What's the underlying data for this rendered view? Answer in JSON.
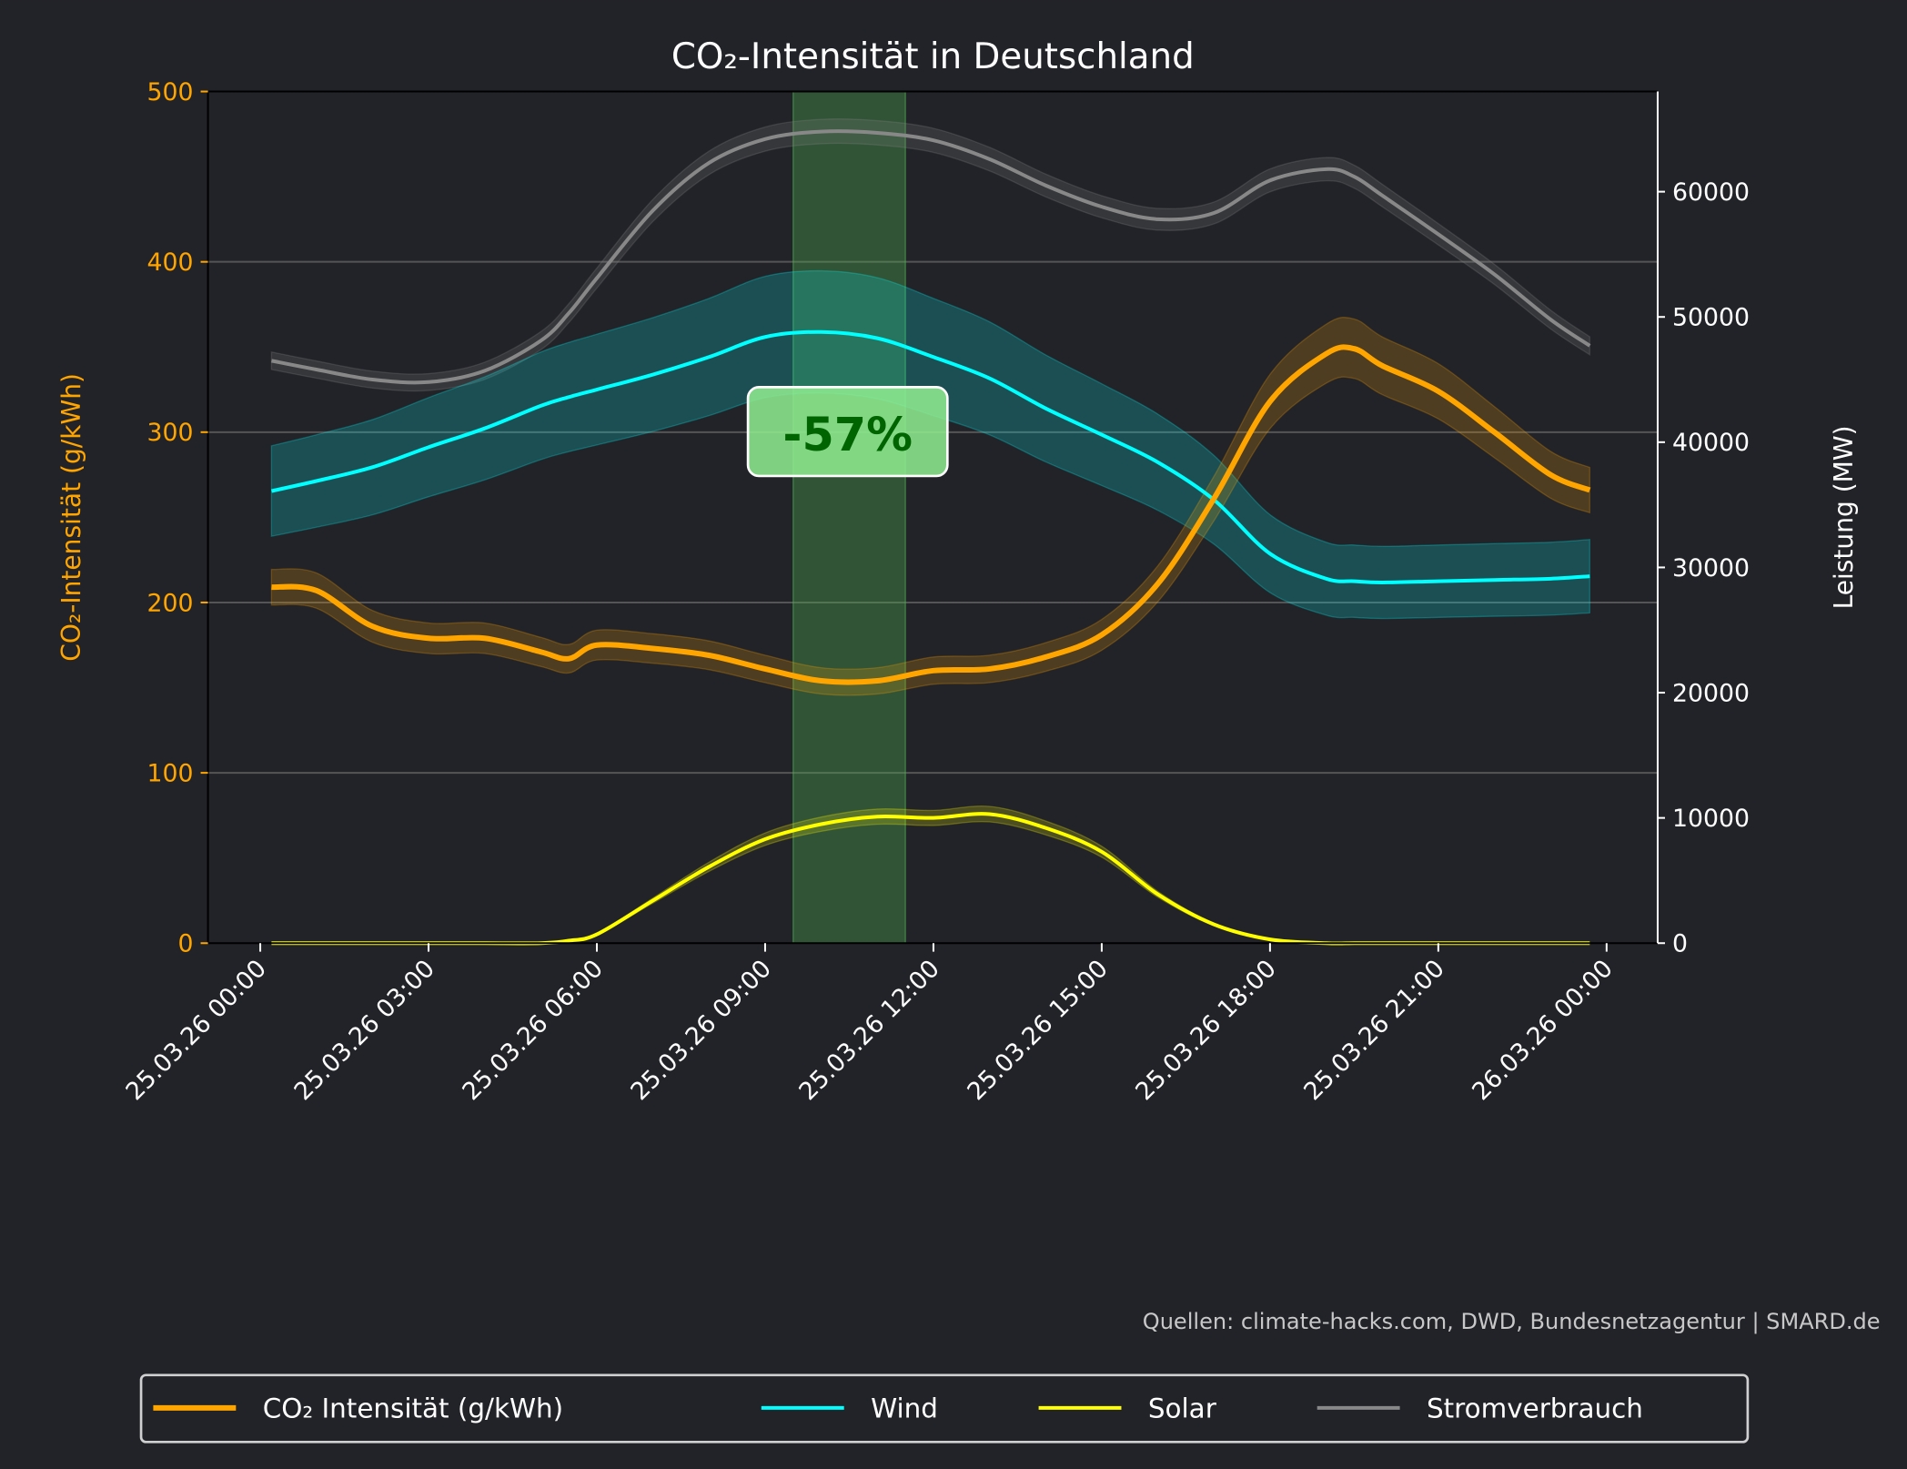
{
  "chart_data": {
    "type": "line",
    "title": "CO₂-Intensität in Deutschland",
    "ylabel_left": "CO₂-Intensität (g/kWh)",
    "ylabel_right": "Leistung (MW)",
    "xlabel": "",
    "ylim_left": [
      0,
      500
    ],
    "ylim_right": [
      0,
      68000
    ],
    "yticks_left": [
      "0",
      "100",
      "200",
      "300",
      "400",
      "500"
    ],
    "yticks_right": [
      "0",
      "10000",
      "20000",
      "30000",
      "40000",
      "50000",
      "60000"
    ],
    "xticks": [
      "25.03.26 00:00",
      "25.03.26 03:00",
      "25.03.26 06:00",
      "25.03.26 09:00",
      "25.03.26 12:00",
      "25.03.26 15:00",
      "25.03.26 18:00",
      "25.03.26 21:00",
      "26.03.26 00:00"
    ],
    "grid": "horizontal",
    "legend_placement": "bottom-center",
    "x_hours": [
      0.2,
      1,
      2,
      3,
      4,
      5,
      5.5,
      6,
      7,
      8,
      9,
      10,
      11,
      12,
      13,
      14,
      15,
      16,
      17,
      18,
      19,
      19.5,
      20,
      21,
      22,
      23,
      23.7
    ],
    "series": [
      {
        "name": "CO₂ Intensität (g/kWh)",
        "axis": "left",
        "color": "#ffa500",
        "band_fraction": 0.05,
        "values": [
          209,
          207,
          186,
          179,
          179,
          171,
          167,
          175,
          173,
          169,
          161,
          154,
          154,
          160,
          161,
          168,
          181,
          211,
          261,
          318,
          346,
          349,
          339,
          324,
          300,
          275,
          266
        ]
      },
      {
        "name": "Wind",
        "axis": "right",
        "color": "#00ffff",
        "band_fraction": 0.1,
        "values": [
          36100,
          36900,
          38000,
          39600,
          41100,
          42900,
          43600,
          44200,
          45400,
          46800,
          48400,
          48800,
          48300,
          46800,
          45100,
          42700,
          40600,
          38400,
          35400,
          31100,
          29100,
          28900,
          28800,
          28900,
          29000,
          29100,
          29300
        ]
      },
      {
        "name": "Solar",
        "axis": "right",
        "color": "#ffff00",
        "band_fraction": 0.06,
        "values": [
          0,
          0,
          0,
          0,
          0,
          0,
          200,
          700,
          3400,
          6100,
          8300,
          9500,
          10100,
          10000,
          10300,
          9200,
          7300,
          3900,
          1500,
          300,
          0,
          0,
          0,
          0,
          0,
          0,
          0
        ]
      },
      {
        "name": "Stromverbrauch",
        "axis": "right",
        "color": "#888888",
        "band_fraction": 0.015,
        "values": [
          46500,
          45800,
          45000,
          44800,
          45700,
          48100,
          50300,
          53100,
          58500,
          62300,
          64200,
          64800,
          64700,
          64100,
          62600,
          60500,
          58800,
          57800,
          58300,
          60900,
          61800,
          61200,
          59700,
          56600,
          53400,
          49800,
          47700
        ]
      }
    ],
    "highlight": {
      "start": "25.03.26 09:30",
      "end": "25.03.26 11:30",
      "color": "#4caf50"
    },
    "annotation": {
      "text": "-57%",
      "color": "#006400",
      "box_color": "#90ee90"
    },
    "source": "Quellen: climate-hacks.com, DWD, Bundesnetzagentur | SMARD.de"
  }
}
